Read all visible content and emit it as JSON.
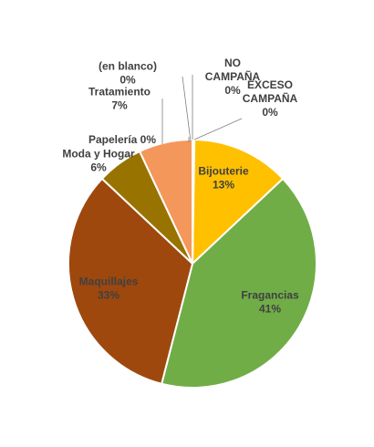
{
  "chart_data": {
    "type": "pie",
    "title": "",
    "slices": [
      {
        "name": "Bijouterie",
        "value_label": "13%",
        "value": 13,
        "color": "#FFC000"
      },
      {
        "name": "Fragancias",
        "value_label": "41%",
        "value": 41,
        "color": "#70AD47"
      },
      {
        "name": "Maquillajes",
        "value_label": "33%",
        "value": 33,
        "color": "#9E480E"
      },
      {
        "name": "Moda y Hogar",
        "value_label": "6%",
        "value": 6,
        "color": "#997300"
      },
      {
        "name": "Tratamiento",
        "value_label": "7%",
        "value": 7,
        "color": "#F4975A"
      },
      {
        "name": "Papelería",
        "value_label": "0%",
        "value": 0,
        "color": "#A5A5A5"
      },
      {
        "name": "(en blanco)",
        "value_label": "0%",
        "value": 0,
        "color": "#4472C4"
      },
      {
        "name": "NO CAMPAÑA",
        "value_label": "0%",
        "value": 0,
        "color": "#5B9BD5"
      },
      {
        "name": "EXCESO CAMPAÑA",
        "value_label": "0%",
        "value": 0,
        "color": "#264478"
      }
    ],
    "legend": false
  }
}
